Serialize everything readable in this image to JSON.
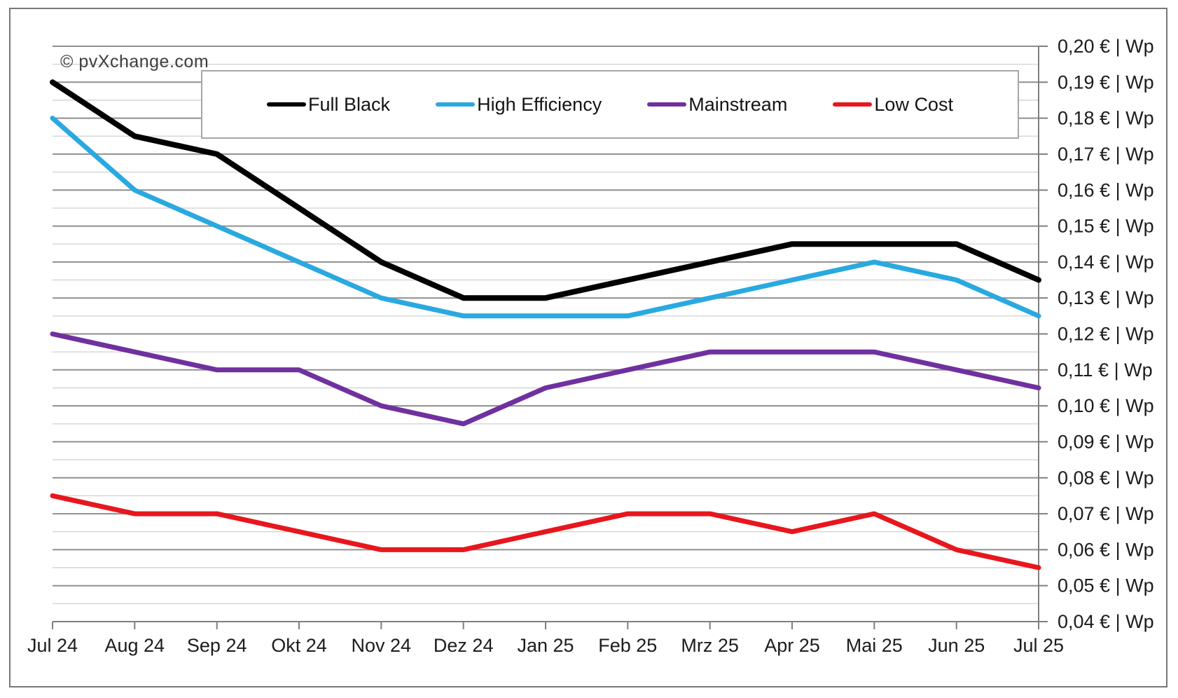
{
  "copyright": "© pvXchange.com",
  "chart_data": {
    "type": "line",
    "title": "",
    "subtitle": "",
    "legend_position": "top",
    "grid": true,
    "categories": [
      "Jul 24",
      "Aug 24",
      "Sep 24",
      "Okt 24",
      "Nov 24",
      "Dez 24",
      "Jan 25",
      "Feb 25",
      "Mrz 25",
      "Apr 25",
      "Mai 25",
      "Jun 25",
      "Jul 25"
    ],
    "series": [
      {
        "name": "Full Black",
        "color": "#000000",
        "values": [
          0.19,
          0.175,
          0.17,
          0.155,
          0.14,
          0.13,
          0.13,
          0.135,
          0.14,
          0.145,
          0.145,
          0.145,
          0.135
        ]
      },
      {
        "name": "High Efficiency",
        "color": "#29a9e0",
        "values": [
          0.18,
          0.16,
          0.15,
          0.14,
          0.13,
          0.125,
          0.125,
          0.125,
          0.13,
          0.135,
          0.14,
          0.135,
          0.125
        ]
      },
      {
        "name": "Mainstream",
        "color": "#7030a0",
        "values": [
          0.12,
          0.115,
          0.11,
          0.11,
          0.1,
          0.095,
          0.105,
          0.11,
          0.115,
          0.115,
          0.115,
          0.11,
          0.105
        ]
      },
      {
        "name": "Low Cost",
        "color": "#e8161d",
        "values": [
          0.075,
          0.07,
          0.07,
          0.065,
          0.06,
          0.06,
          0.065,
          0.07,
          0.07,
          0.065,
          0.07,
          0.06,
          0.055
        ]
      }
    ],
    "y_axis": {
      "min": 0.04,
      "max": 0.2,
      "major_step": 0.01,
      "minor_step": 0.005,
      "unit": "€ | Wp",
      "tick_labels": [
        "0,20 € | Wp",
        "0,19 € | Wp",
        "0,18 € | Wp",
        "0,17 € | Wp",
        "0,16 € | Wp",
        "0,15 € | Wp",
        "0,14 € | Wp",
        "0,13 € | Wp",
        "0,12 € | Wp",
        "0,11 € | Wp",
        "0,10 € | Wp",
        "0,09 € | Wp",
        "0,08 € | Wp",
        "0,07 € | Wp",
        "0,06 € | Wp",
        "0,05 € | Wp",
        "0,04 € | Wp"
      ]
    },
    "x_axis": {
      "tick_labels": [
        "Jul 24",
        "Aug 24",
        "Sep 24",
        "Okt 24",
        "Nov 24",
        "Dez 24",
        "Jan 25",
        "Feb 25",
        "Mrz 25",
        "Apr 25",
        "Mai 25",
        "Jun 25",
        "Jul 25"
      ]
    }
  }
}
